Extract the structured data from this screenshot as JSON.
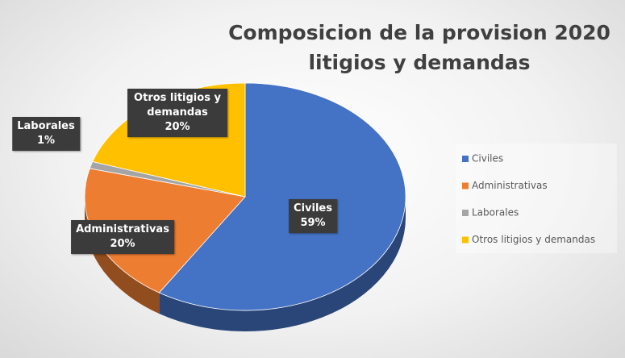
{
  "chart_data": {
    "type": "pie",
    "title": "Composicion de la provision 2020 litigios y demandas",
    "categories": [
      "Civiles",
      "Administrativas",
      "Laborales",
      "Otros litigios y demandas"
    ],
    "values": [
      59,
      20,
      1,
      20
    ],
    "value_labels": [
      "59%",
      "20%",
      "1%",
      "20%"
    ],
    "colors": [
      "#4472c4",
      "#ed7d31",
      "#a5a5a5",
      "#ffc000"
    ],
    "legend": "right",
    "three_d": true
  }
}
